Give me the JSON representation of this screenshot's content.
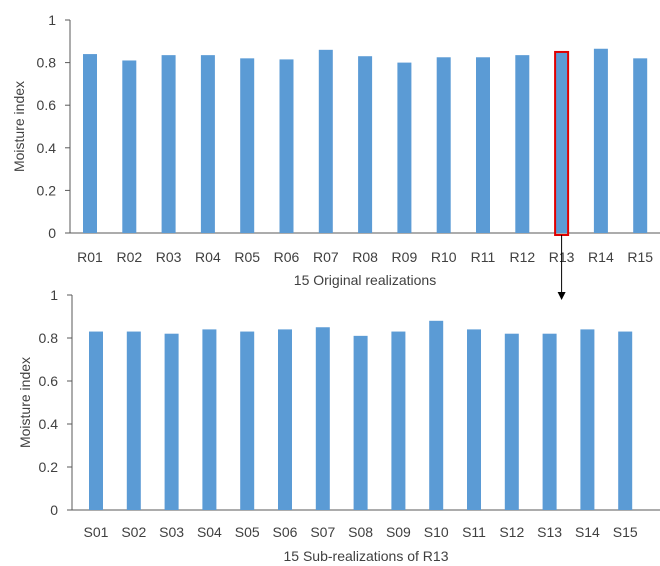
{
  "chart_data": [
    {
      "type": "bar",
      "categories": [
        "R01",
        "R02",
        "R03",
        "R04",
        "R05",
        "R06",
        "R07",
        "R08",
        "R09",
        "R10",
        "R11",
        "R12",
        "R13",
        "R14",
        "R15"
      ],
      "values": [
        0.84,
        0.81,
        0.835,
        0.835,
        0.82,
        0.815,
        0.86,
        0.83,
        0.8,
        0.825,
        0.825,
        0.835,
        0.85,
        0.865,
        0.82
      ],
      "xlabel": "15 Original realizations",
      "ylabel": "Moisture index",
      "ylim": [
        0,
        1
      ],
      "yticks": [
        "0",
        "0.2",
        "0.4",
        "0.6",
        "0.8",
        "1"
      ],
      "highlight_category": "R13",
      "grid": false
    },
    {
      "type": "bar",
      "categories": [
        "S01",
        "S02",
        "S03",
        "S04",
        "S05",
        "S06",
        "S07",
        "S08",
        "S09",
        "S10",
        "S11",
        "S12",
        "S13",
        "S14",
        "S15"
      ],
      "values": [
        0.83,
        0.83,
        0.82,
        0.84,
        0.83,
        0.84,
        0.85,
        0.81,
        0.83,
        0.88,
        0.84,
        0.82,
        0.82,
        0.84,
        0.83
      ],
      "xlabel": "15 Sub-realizations of R13",
      "ylabel": "Moisture index",
      "ylim": [
        0,
        1
      ],
      "yticks": [
        "0",
        "0.2",
        "0.4",
        "0.6",
        "0.8",
        "1"
      ],
      "grid": false
    }
  ],
  "colors": {
    "bar": "#5b9bd5",
    "highlight": "#e00000",
    "axis": "#595959",
    "text": "#404040",
    "arrow": "#000000"
  }
}
